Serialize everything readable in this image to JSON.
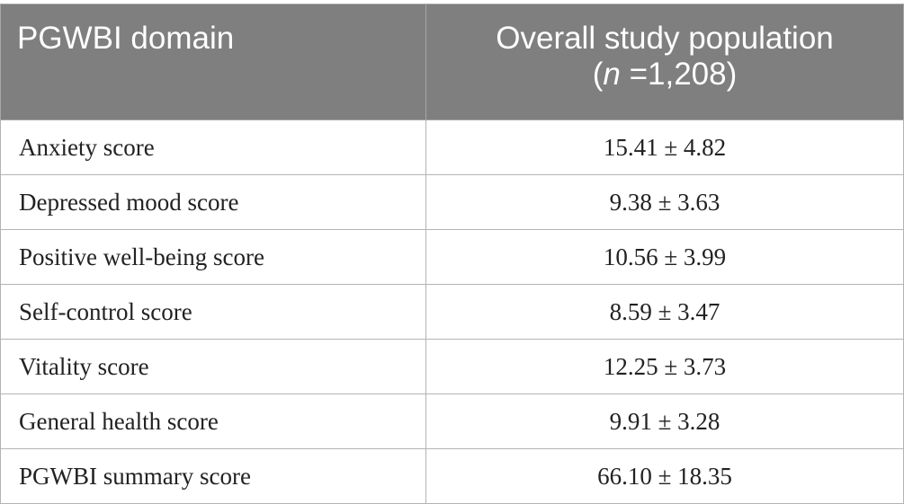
{
  "table": {
    "headers": {
      "domain": "PGWBI domain",
      "population_line1": "Overall study population",
      "population_open": "(",
      "population_n": "n",
      "population_rest": " =1,208)"
    },
    "rows": [
      {
        "label": "Anxiety score",
        "value": "15.41 ± 4.82"
      },
      {
        "label": "Depressed mood score",
        "value": "9.38 ± 3.63"
      },
      {
        "label": "Positive well-being score",
        "value": "10.56 ± 3.99"
      },
      {
        "label": "Self-control score",
        "value": "8.59 ± 3.47"
      },
      {
        "label": "Vitality score",
        "value": "12.25 ± 3.73"
      },
      {
        "label": "General health score",
        "value": "9.91 ± 3.28"
      },
      {
        "label": "PGWBI summary score",
        "value": "66.10 ± 18.35"
      }
    ]
  }
}
